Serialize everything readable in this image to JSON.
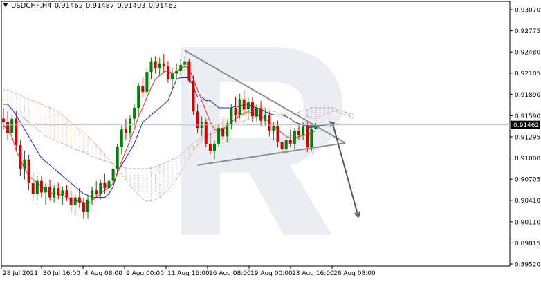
{
  "header": {
    "symbol": "USDCHF,H4",
    "open": "0.91462",
    "high": "0.91487",
    "low": "0.91403",
    "close": "0.91462"
  },
  "chart_data": {
    "type": "candlestick",
    "price_axis": {
      "ticks": [
        "0.93070",
        "0.92775",
        "0.92480",
        "0.92185",
        "0.91890",
        "0.91590",
        "0.91295",
        "0.91000",
        "0.90705",
        "0.90410",
        "0.90110",
        "0.89815",
        "0.89520"
      ],
      "current_price": "0.91462",
      "ylim": [
        0.8952,
        0.9307
      ]
    },
    "time_axis": {
      "labels": [
        "28 Jul 2021",
        "30 Jul 16:00",
        "4 Aug 08:00",
        "9 Aug 00:00",
        "11 Aug 16:00",
        "16 Aug 08:00",
        "19 Aug 00:00",
        "23 Aug 16:00",
        "26 Aug 08:00"
      ]
    },
    "candles": [
      {
        "o": 0.9155,
        "h": 0.917,
        "l": 0.914,
        "c": 0.915
      },
      {
        "o": 0.915,
        "h": 0.9165,
        "l": 0.9125,
        "c": 0.9135
      },
      {
        "o": 0.9135,
        "h": 0.916,
        "l": 0.9125,
        "c": 0.9155
      },
      {
        "o": 0.9155,
        "h": 0.9165,
        "l": 0.911,
        "c": 0.9118
      },
      {
        "o": 0.9118,
        "h": 0.9125,
        "l": 0.9075,
        "c": 0.9085
      },
      {
        "o": 0.9085,
        "h": 0.911,
        "l": 0.907,
        "c": 0.9098
      },
      {
        "o": 0.9098,
        "h": 0.9105,
        "l": 0.9055,
        "c": 0.9065
      },
      {
        "o": 0.9065,
        "h": 0.908,
        "l": 0.904,
        "c": 0.905
      },
      {
        "o": 0.905,
        "h": 0.9075,
        "l": 0.904,
        "c": 0.9068
      },
      {
        "o": 0.9068,
        "h": 0.9075,
        "l": 0.9045,
        "c": 0.9052
      },
      {
        "o": 0.9052,
        "h": 0.9065,
        "l": 0.9035,
        "c": 0.906
      },
      {
        "o": 0.906,
        "h": 0.907,
        "l": 0.904,
        "c": 0.9045
      },
      {
        "o": 0.9045,
        "h": 0.9062,
        "l": 0.9038,
        "c": 0.9058
      },
      {
        "o": 0.9058,
        "h": 0.9065,
        "l": 0.9042,
        "c": 0.9048
      },
      {
        "o": 0.9048,
        "h": 0.906,
        "l": 0.9035,
        "c": 0.9055
      },
      {
        "o": 0.9055,
        "h": 0.9062,
        "l": 0.904,
        "c": 0.9045
      },
      {
        "o": 0.9045,
        "h": 0.9055,
        "l": 0.9025,
        "c": 0.9035
      },
      {
        "o": 0.9035,
        "h": 0.905,
        "l": 0.902,
        "c": 0.9045
      },
      {
        "o": 0.9045,
        "h": 0.9058,
        "l": 0.903,
        "c": 0.9038
      },
      {
        "o": 0.9038,
        "h": 0.9045,
        "l": 0.9015,
        "c": 0.9025
      },
      {
        "o": 0.9025,
        "h": 0.9048,
        "l": 0.9015,
        "c": 0.9042
      },
      {
        "o": 0.9042,
        "h": 0.906,
        "l": 0.9035,
        "c": 0.9055
      },
      {
        "o": 0.9055,
        "h": 0.9068,
        "l": 0.9045,
        "c": 0.905
      },
      {
        "o": 0.905,
        "h": 0.907,
        "l": 0.9042,
        "c": 0.9065
      },
      {
        "o": 0.9065,
        "h": 0.9078,
        "l": 0.905,
        "c": 0.9058
      },
      {
        "o": 0.9058,
        "h": 0.9072,
        "l": 0.9048,
        "c": 0.9068
      },
      {
        "o": 0.9068,
        "h": 0.909,
        "l": 0.906,
        "c": 0.9085
      },
      {
        "o": 0.9085,
        "h": 0.912,
        "l": 0.9078,
        "c": 0.9115
      },
      {
        "o": 0.9115,
        "h": 0.9145,
        "l": 0.9105,
        "c": 0.914
      },
      {
        "o": 0.914,
        "h": 0.9155,
        "l": 0.9125,
        "c": 0.9135
      },
      {
        "o": 0.9135,
        "h": 0.916,
        "l": 0.9128,
        "c": 0.9155
      },
      {
        "o": 0.9155,
        "h": 0.9175,
        "l": 0.9145,
        "c": 0.917
      },
      {
        "o": 0.917,
        "h": 0.9205,
        "l": 0.916,
        "c": 0.92
      },
      {
        "o": 0.92,
        "h": 0.9212,
        "l": 0.9185,
        "c": 0.9192
      },
      {
        "o": 0.9192,
        "h": 0.9225,
        "l": 0.9188,
        "c": 0.922
      },
      {
        "o": 0.922,
        "h": 0.924,
        "l": 0.921,
        "c": 0.9235
      },
      {
        "o": 0.9235,
        "h": 0.9242,
        "l": 0.9218,
        "c": 0.9225
      },
      {
        "o": 0.9225,
        "h": 0.924,
        "l": 0.9215,
        "c": 0.9232
      },
      {
        "o": 0.9232,
        "h": 0.9245,
        "l": 0.922,
        "c": 0.9228
      },
      {
        "o": 0.9228,
        "h": 0.9235,
        "l": 0.9205,
        "c": 0.921
      },
      {
        "o": 0.921,
        "h": 0.9225,
        "l": 0.9198,
        "c": 0.9218
      },
      {
        "o": 0.9218,
        "h": 0.9232,
        "l": 0.921,
        "c": 0.9222
      },
      {
        "o": 0.9222,
        "h": 0.9238,
        "l": 0.9215,
        "c": 0.923
      },
      {
        "o": 0.923,
        "h": 0.9242,
        "l": 0.9222,
        "c": 0.9235
      },
      {
        "o": 0.9235,
        "h": 0.9238,
        "l": 0.9205,
        "c": 0.9208
      },
      {
        "o": 0.9208,
        "h": 0.9215,
        "l": 0.916,
        "c": 0.9165
      },
      {
        "o": 0.9165,
        "h": 0.9175,
        "l": 0.9135,
        "c": 0.9142
      },
      {
        "o": 0.9142,
        "h": 0.9158,
        "l": 0.913,
        "c": 0.915
      },
      {
        "o": 0.915,
        "h": 0.9155,
        "l": 0.9115,
        "c": 0.912
      },
      {
        "o": 0.912,
        "h": 0.9135,
        "l": 0.9105,
        "c": 0.911
      },
      {
        "o": 0.911,
        "h": 0.9125,
        "l": 0.9098,
        "c": 0.912
      },
      {
        "o": 0.912,
        "h": 0.9148,
        "l": 0.9115,
        "c": 0.9142
      },
      {
        "o": 0.9142,
        "h": 0.9155,
        "l": 0.9125,
        "c": 0.913
      },
      {
        "o": 0.913,
        "h": 0.9152,
        "l": 0.9122,
        "c": 0.9148
      },
      {
        "o": 0.9148,
        "h": 0.9175,
        "l": 0.914,
        "c": 0.917
      },
      {
        "o": 0.917,
        "h": 0.9185,
        "l": 0.915,
        "c": 0.916
      },
      {
        "o": 0.916,
        "h": 0.919,
        "l": 0.9155,
        "c": 0.9182
      },
      {
        "o": 0.9182,
        "h": 0.9195,
        "l": 0.916,
        "c": 0.9168
      },
      {
        "o": 0.9168,
        "h": 0.9185,
        "l": 0.9155,
        "c": 0.9178
      },
      {
        "o": 0.9178,
        "h": 0.9185,
        "l": 0.915,
        "c": 0.9158
      },
      {
        "o": 0.9158,
        "h": 0.9175,
        "l": 0.915,
        "c": 0.917
      },
      {
        "o": 0.917,
        "h": 0.918,
        "l": 0.9145,
        "c": 0.9152
      },
      {
        "o": 0.9152,
        "h": 0.9168,
        "l": 0.9145,
        "c": 0.916
      },
      {
        "o": 0.916,
        "h": 0.9165,
        "l": 0.913,
        "c": 0.9138
      },
      {
        "o": 0.9138,
        "h": 0.915,
        "l": 0.9125,
        "c": 0.9145
      },
      {
        "o": 0.9145,
        "h": 0.9152,
        "l": 0.9115,
        "c": 0.9122
      },
      {
        "o": 0.9122,
        "h": 0.9135,
        "l": 0.9105,
        "c": 0.9112
      },
      {
        "o": 0.9112,
        "h": 0.913,
        "l": 0.9105,
        "c": 0.9125
      },
      {
        "o": 0.9125,
        "h": 0.914,
        "l": 0.9115,
        "c": 0.912
      },
      {
        "o": 0.912,
        "h": 0.9142,
        "l": 0.9112,
        "c": 0.9138
      },
      {
        "o": 0.9138,
        "h": 0.9148,
        "l": 0.9125,
        "c": 0.9132
      },
      {
        "o": 0.9132,
        "h": 0.915,
        "l": 0.9125,
        "c": 0.9145
      },
      {
        "o": 0.9145,
        "h": 0.915,
        "l": 0.9108,
        "c": 0.9115
      },
      {
        "o": 0.9115,
        "h": 0.9145,
        "l": 0.911,
        "c": 0.914
      },
      {
        "o": 0.914,
        "h": 0.9149,
        "l": 0.914,
        "c": 0.9146
      }
    ],
    "indicators": {
      "tenkan_sen_red": [
        0.9145,
        0.914,
        0.913,
        0.911,
        0.9098,
        0.9085,
        0.9075,
        0.907,
        0.9065,
        0.906,
        0.9055,
        0.9052,
        0.905,
        0.905,
        0.9048,
        0.9045,
        0.9042,
        0.904,
        0.904,
        0.9038,
        0.9036,
        0.904,
        0.9045,
        0.905,
        0.9055,
        0.9058,
        0.9065,
        0.9078,
        0.9095,
        0.911,
        0.9125,
        0.914,
        0.9158,
        0.917,
        0.9185,
        0.9198,
        0.921,
        0.9215,
        0.922,
        0.9222,
        0.9218,
        0.922,
        0.9225,
        0.9228,
        0.9225,
        0.921,
        0.9195,
        0.918,
        0.9165,
        0.915,
        0.914,
        0.9138,
        0.914,
        0.9145,
        0.915,
        0.9155,
        0.916,
        0.9162,
        0.9165,
        0.9162,
        0.916,
        0.9158,
        0.9155,
        0.915,
        0.9145,
        0.914,
        0.9135,
        0.913,
        0.9128,
        0.9128,
        0.913,
        0.9132,
        0.9132,
        0.9135,
        0.9138
      ],
      "kijun_sen_blue": [
        0.9175,
        0.9175,
        0.9168,
        0.916,
        0.915,
        0.914,
        0.913,
        0.912,
        0.911,
        0.91,
        0.9095,
        0.909,
        0.9085,
        0.908,
        0.9075,
        0.907,
        0.9065,
        0.906,
        0.9055,
        0.905,
        0.9048,
        0.9045,
        0.9045,
        0.9045,
        0.9045,
        0.905,
        0.906,
        0.908,
        0.909,
        0.91,
        0.911,
        0.912,
        0.9135,
        0.915,
        0.9155,
        0.916,
        0.9165,
        0.917,
        0.9175,
        0.918,
        0.9195,
        0.921,
        0.9212,
        0.9212,
        0.9212,
        0.92,
        0.9185,
        0.9185,
        0.918,
        0.918,
        0.9175,
        0.917,
        0.917,
        0.917,
        0.917,
        0.9172,
        0.9172,
        0.9175,
        0.9175,
        0.9172,
        0.917,
        0.9168,
        0.9165,
        0.9162,
        0.916,
        0.916,
        0.916,
        0.9158,
        0.9155,
        0.915,
        0.9148,
        0.9146,
        0.9145,
        0.9145,
        0.9145
      ],
      "cloud_span_a": [
        0.9195,
        0.9195,
        0.9192,
        0.919,
        0.9188,
        0.9185,
        0.9182,
        0.918,
        0.9178,
        0.9175,
        0.9172,
        0.917,
        0.9168,
        0.9165,
        0.916,
        0.9155,
        0.915,
        0.9145,
        0.914,
        0.9135,
        0.913,
        0.9125,
        0.9118,
        0.9112,
        0.9105,
        0.9098,
        0.9092,
        0.9085,
        0.9078,
        0.907,
        0.9062,
        0.9055,
        0.9048,
        0.9042,
        0.904,
        0.904,
        0.9042,
        0.9045,
        0.905,
        0.9055,
        0.9062,
        0.907,
        0.908,
        0.909,
        0.91,
        0.911,
        0.9118,
        0.9125,
        0.913,
        0.9135,
        0.914,
        0.9145,
        0.915,
        0.9155,
        0.9158,
        0.9162,
        0.9165,
        0.9168,
        0.917,
        0.9172,
        0.9172,
        0.9172,
        0.917,
        0.9168,
        0.9165,
        0.9163,
        0.9162,
        0.916,
        0.916,
        0.916,
        0.916,
        0.916,
        0.9158,
        0.9156,
        0.9155,
        0.9158,
        0.916,
        0.9162,
        0.9165,
        0.9165,
        0.9162,
        0.916,
        0.9158,
        0.9155
      ],
      "cloud_span_b": [
        0.9175,
        0.9172,
        0.9168,
        0.9165,
        0.916,
        0.9155,
        0.915,
        0.9145,
        0.914,
        0.9135,
        0.913,
        0.9128,
        0.9125,
        0.9122,
        0.912,
        0.9118,
        0.9115,
        0.9112,
        0.911,
        0.9108,
        0.9105,
        0.9102,
        0.91,
        0.9098,
        0.9096,
        0.9094,
        0.9092,
        0.909,
        0.9088,
        0.9086,
        0.9085,
        0.9085,
        0.9085,
        0.9085,
        0.9085,
        0.9086,
        0.9088,
        0.909,
        0.9092,
        0.9095,
        0.9098,
        0.91,
        0.9105,
        0.911,
        0.9115,
        0.912,
        0.9125,
        0.9128,
        0.913,
        0.9132,
        0.9135,
        0.9138,
        0.914,
        0.9142,
        0.9145,
        0.9148,
        0.915,
        0.9152,
        0.9154,
        0.9156,
        0.9158,
        0.916,
        0.916,
        0.916,
        0.916,
        0.916,
        0.916,
        0.916,
        0.916,
        0.9162,
        0.9164,
        0.9166,
        0.9168,
        0.917,
        0.917,
        0.917,
        0.917,
        0.917,
        0.917,
        0.9168,
        0.9166,
        0.9164,
        0.9162,
        0.916
      ]
    },
    "annotations": {
      "triangle_upper_line": {
        "from": {
          "bar": 43,
          "price": 0.925
        },
        "to": {
          "bar": 81,
          "price": 0.9121
        }
      },
      "triangle_lower_line": {
        "from": {
          "bar": 46,
          "price": 0.909
        },
        "to": {
          "bar": 81,
          "price": 0.9121
        }
      },
      "forecast_arrow": [
        {
          "bar": 72,
          "price": 0.9142
        },
        {
          "bar": 78,
          "price": 0.9148
        },
        {
          "bar": 84,
          "price": 0.902
        }
      ]
    },
    "colors": {
      "bull": "#008000",
      "bear": "#d40000",
      "tenkan": "#ff2020",
      "kijun": "#2020c8",
      "cloud_a": "#f4a060",
      "cloud_b": "#b090d8",
      "trendline": "#8c8c8c",
      "arrow": "#4a5a70",
      "watermark": "#eaeef2"
    }
  }
}
